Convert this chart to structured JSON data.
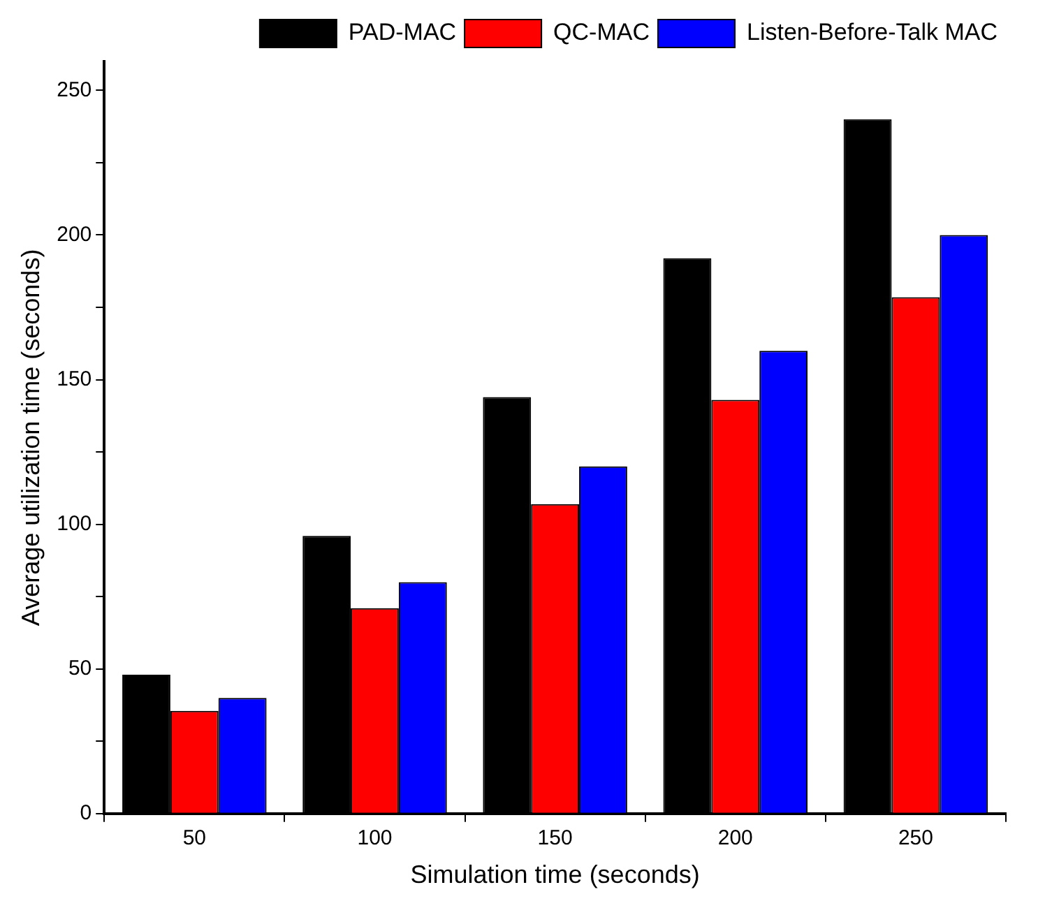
{
  "chart_data": {
    "type": "bar",
    "xlabel": "Simulation time (seconds)",
    "ylabel": "Average utilization time (seconds)",
    "categories": [
      "50",
      "100",
      "150",
      "200",
      "250"
    ],
    "series": [
      {
        "name": "PAD-MAC",
        "color": "#000000",
        "values": [
          48,
          96,
          144,
          192,
          240
        ]
      },
      {
        "name": "QC-MAC",
        "color": "#ff0000",
        "values": [
          35.5,
          71,
          107,
          143,
          178.5
        ]
      },
      {
        "name": "Listen-Before-Talk MAC",
        "color": "#0000ff",
        "values": [
          40,
          80,
          120,
          160,
          200
        ]
      }
    ],
    "ylim": [
      0,
      260
    ],
    "yticks": [
      0,
      {
        "value": 25,
        "label": null
      },
      50,
      {
        "value": 75,
        "label": null
      },
      100,
      {
        "value": 125,
        "label": null
      },
      150,
      {
        "value": 175,
        "label": null
      },
      200,
      {
        "value": 225,
        "label": null
      },
      250
    ],
    "grid": false,
    "legend": "top right"
  }
}
